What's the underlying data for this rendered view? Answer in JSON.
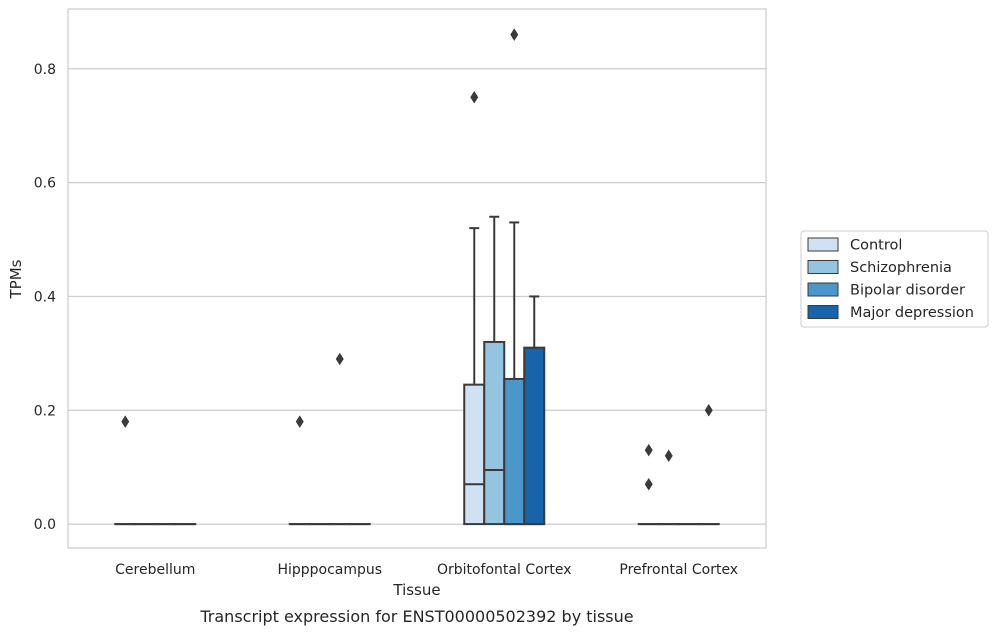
{
  "chart_data": {
    "type": "box",
    "title": "",
    "caption": "Transcript expression for ENST00000502392 by tissue",
    "xlabel": "Tissue",
    "ylabel": "TPMs",
    "ylim": [
      -0.042,
      0.905
    ],
    "yticks": [
      0.0,
      0.2,
      0.4,
      0.6,
      0.8
    ],
    "ytick_labels": [
      "0.0",
      "0.2",
      "0.4",
      "0.6",
      "0.8"
    ],
    "grid": "horizontal",
    "legend_position": "right",
    "categories": [
      "Cerebellum",
      "Hipppocampus",
      "Orbitofontal Cortex",
      "Prefrontal Cortex"
    ],
    "series": [
      {
        "name": "Control",
        "color": "#d0e1f2",
        "boxes": [
          {
            "category": "Cerebellum",
            "min": 0,
            "q1": 0,
            "median": 0,
            "q3": 0,
            "max": 0,
            "outliers": [
              0.18
            ]
          },
          {
            "category": "Hipppocampus",
            "min": 0,
            "q1": 0,
            "median": 0,
            "q3": 0,
            "max": 0,
            "outliers": [
              0.18
            ]
          },
          {
            "category": "Orbitofontal Cortex",
            "min": 0,
            "q1": 0,
            "median": 0.07,
            "q3": 0.245,
            "max": 0.52,
            "outliers": [
              0.75
            ]
          },
          {
            "category": "Prefrontal Cortex",
            "min": 0,
            "q1": 0,
            "median": 0,
            "q3": 0,
            "max": 0,
            "outliers": [
              0.07,
              0.13
            ]
          }
        ]
      },
      {
        "name": "Schizophrenia",
        "color": "#94c4df",
        "boxes": [
          {
            "category": "Cerebellum",
            "min": 0,
            "q1": 0,
            "median": 0,
            "q3": 0,
            "max": 0,
            "outliers": []
          },
          {
            "category": "Hipppocampus",
            "min": 0,
            "q1": 0,
            "median": 0,
            "q3": 0,
            "max": 0,
            "outliers": []
          },
          {
            "category": "Orbitofontal Cortex",
            "min": 0,
            "q1": 0,
            "median": 0.095,
            "q3": 0.32,
            "max": 0.54,
            "outliers": []
          },
          {
            "category": "Prefrontal Cortex",
            "min": 0,
            "q1": 0,
            "median": 0,
            "q3": 0,
            "max": 0,
            "outliers": [
              0.12
            ]
          }
        ]
      },
      {
        "name": "Bipolar disorder",
        "color": "#4a98c9",
        "boxes": [
          {
            "category": "Cerebellum",
            "min": 0,
            "q1": 0,
            "median": 0,
            "q3": 0,
            "max": 0,
            "outliers": []
          },
          {
            "category": "Hipppocampus",
            "min": 0,
            "q1": 0,
            "median": 0,
            "q3": 0,
            "max": 0,
            "outliers": [
              0.29
            ]
          },
          {
            "category": "Orbitofontal Cortex",
            "min": 0,
            "q1": 0,
            "median": 0,
            "q3": 0.255,
            "max": 0.53,
            "outliers": [
              0.86
            ]
          },
          {
            "category": "Prefrontal Cortex",
            "min": 0,
            "q1": 0,
            "median": 0,
            "q3": 0,
            "max": 0,
            "outliers": []
          }
        ]
      },
      {
        "name": "Major depression",
        "color": "#1764ab",
        "boxes": [
          {
            "category": "Cerebellum",
            "min": 0,
            "q1": 0,
            "median": 0,
            "q3": 0,
            "max": 0,
            "outliers": []
          },
          {
            "category": "Hipppocampus",
            "min": 0,
            "q1": 0,
            "median": 0,
            "q3": 0,
            "max": 0,
            "outliers": []
          },
          {
            "category": "Orbitofontal Cortex",
            "min": 0,
            "q1": 0,
            "median": 0,
            "q3": 0.31,
            "max": 0.4,
            "outliers": []
          },
          {
            "category": "Prefrontal Cortex",
            "min": 0,
            "q1": 0,
            "median": 0,
            "q3": 0,
            "max": 0,
            "outliers": [
              0.2
            ]
          }
        ]
      }
    ]
  },
  "colors": {
    "edge": "#3a3a3a",
    "grid": "#cccccc",
    "frame": "#cccccc"
  }
}
